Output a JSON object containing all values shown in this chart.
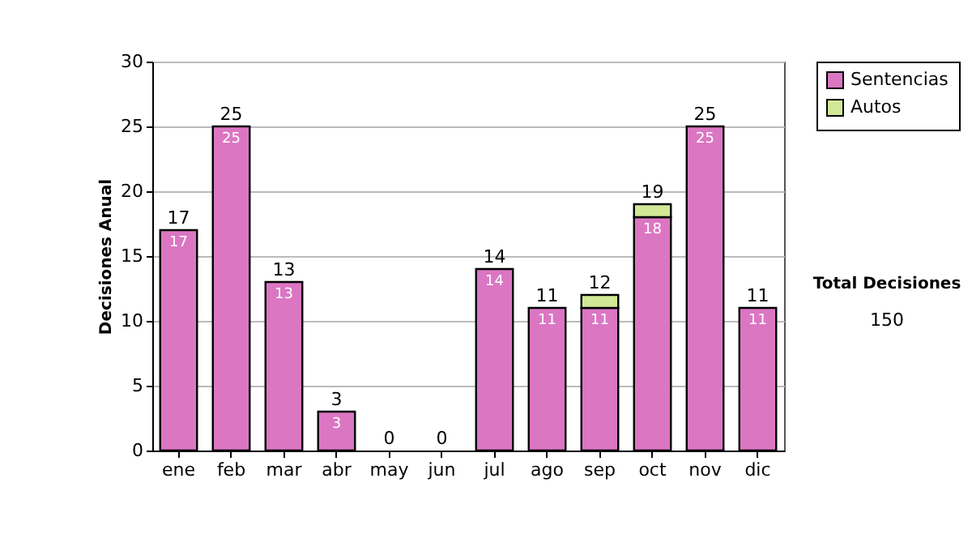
{
  "chart_data": {
    "type": "bar",
    "ylabel": "Decisiones Anual",
    "stacked": true,
    "categories": [
      "ene",
      "feb",
      "mar",
      "abr",
      "may",
      "jun",
      "jul",
      "ago",
      "sep",
      "oct",
      "nov",
      "dic"
    ],
    "series": [
      {
        "name": "Sentencias",
        "color": "#db76c3",
        "values": [
          17,
          25,
          13,
          3,
          0,
          0,
          14,
          11,
          11,
          18,
          25,
          11
        ],
        "value_labels": [
          "17",
          "25",
          "13",
          "3",
          null,
          null,
          "14",
          "11",
          "11",
          "18",
          "25",
          "11"
        ]
      },
      {
        "name": "Autos",
        "color": "#d2e896",
        "values": [
          0,
          0,
          0,
          0,
          0,
          0,
          0,
          0,
          1,
          1,
          0,
          0
        ]
      }
    ],
    "totals": [
      "17",
      "25",
      "13",
      "3",
      "0",
      "0",
      "14",
      "11",
      "12",
      "19",
      "25",
      "11"
    ],
    "ylim": [
      0,
      30
    ],
    "yticks": [
      0,
      5,
      10,
      15,
      20,
      25,
      30
    ],
    "grid": "y",
    "legend": "right",
    "annotations": [
      "Total Decisiones",
      "150"
    ]
  }
}
